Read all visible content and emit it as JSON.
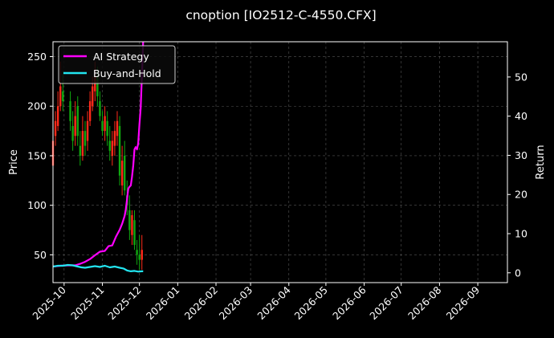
{
  "chart_data": {
    "type": "line",
    "title": "cnoption [IO2512-C-4550.CFX]",
    "ylabel_left": "Price",
    "ylabel_right": "Return",
    "grid": true,
    "legend_position": "top-left",
    "background": "#000000",
    "colors": {
      "ai": "#ff00ff",
      "bh": "#22e5f0",
      "up": "#ff2a1a",
      "down": "#10a810",
      "grid": "#555555",
      "text": "#ffffff"
    },
    "x_range": [
      "2025-09-22",
      "2026-09-25"
    ],
    "y_left_range": [
      22,
      265
    ],
    "y_right_range": [
      -2.5,
      59
    ],
    "x_ticks": [
      "2025-10",
      "2025-11",
      "2025-12",
      "2026-01",
      "2026-02",
      "2026-03",
      "2026-04",
      "2026-05",
      "2026-06",
      "2026-07",
      "2026-08",
      "2026-09"
    ],
    "y_left_ticks": [
      50,
      100,
      150,
      200,
      250
    ],
    "y_right_ticks": [
      0,
      10,
      20,
      30,
      40,
      50
    ],
    "series": [
      {
        "name": "AI Strategy",
        "color": "#ff00ff",
        "x": [
          "2025-09-22",
          "2025-09-28",
          "2025-10-04",
          "2025-10-10",
          "2025-10-14",
          "2025-10-18",
          "2025-10-22",
          "2025-10-26",
          "2025-10-30",
          "2025-11-03",
          "2025-11-06",
          "2025-11-09",
          "2025-11-12",
          "2025-11-15",
          "2025-11-17",
          "2025-11-19",
          "2025-11-20",
          "2025-11-21",
          "2025-11-22",
          "2025-11-23",
          "2025-11-24",
          "2025-11-25",
          "2025-11-26",
          "2025-11-27",
          "2025-11-28",
          "2025-11-29",
          "2025-11-30",
          "2025-12-01",
          "2025-12-02",
          "2025-12-03",
          "2025-12-04"
        ],
        "values": [
          1.6,
          1.8,
          1.9,
          1.9,
          2.3,
          2.8,
          3.5,
          4.5,
          5.4,
          5.6,
          6.8,
          7.0,
          9.2,
          11.0,
          12.5,
          14.5,
          16.2,
          18.9,
          21.5,
          22.0,
          22.3,
          24.5,
          27.5,
          31.5,
          32.1,
          31.5,
          33.0,
          38.0,
          42.0,
          50.0,
          59.0
        ]
      },
      {
        "name": "Buy-and-Hold",
        "color": "#22e5f0",
        "x": [
          "2025-09-22",
          "2025-09-26",
          "2025-09-30",
          "2025-10-04",
          "2025-10-08",
          "2025-10-12",
          "2025-10-15",
          "2025-10-18",
          "2025-10-22",
          "2025-10-26",
          "2025-10-30",
          "2025-11-03",
          "2025-11-07",
          "2025-11-11",
          "2025-11-15",
          "2025-11-18",
          "2025-11-21",
          "2025-11-24",
          "2025-11-27",
          "2025-11-30",
          "2025-12-03",
          "2025-12-04"
        ],
        "values": [
          1.6,
          1.8,
          1.8,
          2.0,
          1.9,
          1.6,
          1.4,
          1.3,
          1.5,
          1.7,
          1.5,
          1.8,
          1.4,
          1.6,
          1.3,
          1.1,
          0.6,
          0.4,
          0.5,
          0.3,
          0.4,
          0.4
        ]
      }
    ],
    "candles": {
      "x": [
        "2025-09-22",
        "2025-09-24",
        "2025-09-26",
        "2025-09-28",
        "2025-09-30",
        "2025-10-06",
        "2025-10-08",
        "2025-10-10",
        "2025-10-12",
        "2025-10-14",
        "2025-10-16",
        "2025-10-18",
        "2025-10-20",
        "2025-10-22",
        "2025-10-24",
        "2025-10-26",
        "2025-10-28",
        "2025-10-30",
        "2025-11-01",
        "2025-11-03",
        "2025-11-05",
        "2025-11-07",
        "2025-11-09",
        "2025-11-11",
        "2025-11-13",
        "2025-11-15",
        "2025-11-17",
        "2025-11-19",
        "2025-11-21",
        "2025-11-23",
        "2025-11-25",
        "2025-11-27",
        "2025-11-29",
        "2025-12-01",
        "2025-12-03"
      ],
      "open": [
        140,
        170,
        180,
        200,
        215,
        205,
        180,
        170,
        200,
        160,
        150,
        175,
        165,
        185,
        200,
        215,
        230,
        205,
        185,
        175,
        185,
        165,
        150,
        160,
        170,
        180,
        120,
        150,
        110,
        95,
        70,
        85,
        55,
        50,
        45
      ],
      "close": [
        165,
        185,
        200,
        220,
        205,
        185,
        165,
        190,
        170,
        150,
        175,
        160,
        185,
        205,
        220,
        230,
        210,
        190,
        175,
        190,
        170,
        155,
        165,
        175,
        185,
        130,
        145,
        115,
        100,
        75,
        90,
        60,
        50,
        45,
        55
      ],
      "high": [
        175,
        195,
        215,
        245,
        235,
        215,
        195,
        205,
        210,
        175,
        190,
        185,
        195,
        215,
        230,
        245,
        240,
        215,
        195,
        200,
        195,
        180,
        175,
        185,
        195,
        190,
        160,
        165,
        125,
        110,
        95,
        95,
        65,
        70,
        70
      ],
      "low": [
        130,
        160,
        175,
        195,
        195,
        175,
        155,
        160,
        160,
        140,
        145,
        150,
        155,
        180,
        195,
        205,
        200,
        185,
        170,
        165,
        160,
        145,
        140,
        150,
        160,
        120,
        110,
        110,
        90,
        65,
        60,
        55,
        40,
        35,
        35
      ]
    }
  },
  "legend": {
    "ai_label": "AI Strategy",
    "bh_label": "Buy-and-Hold"
  }
}
